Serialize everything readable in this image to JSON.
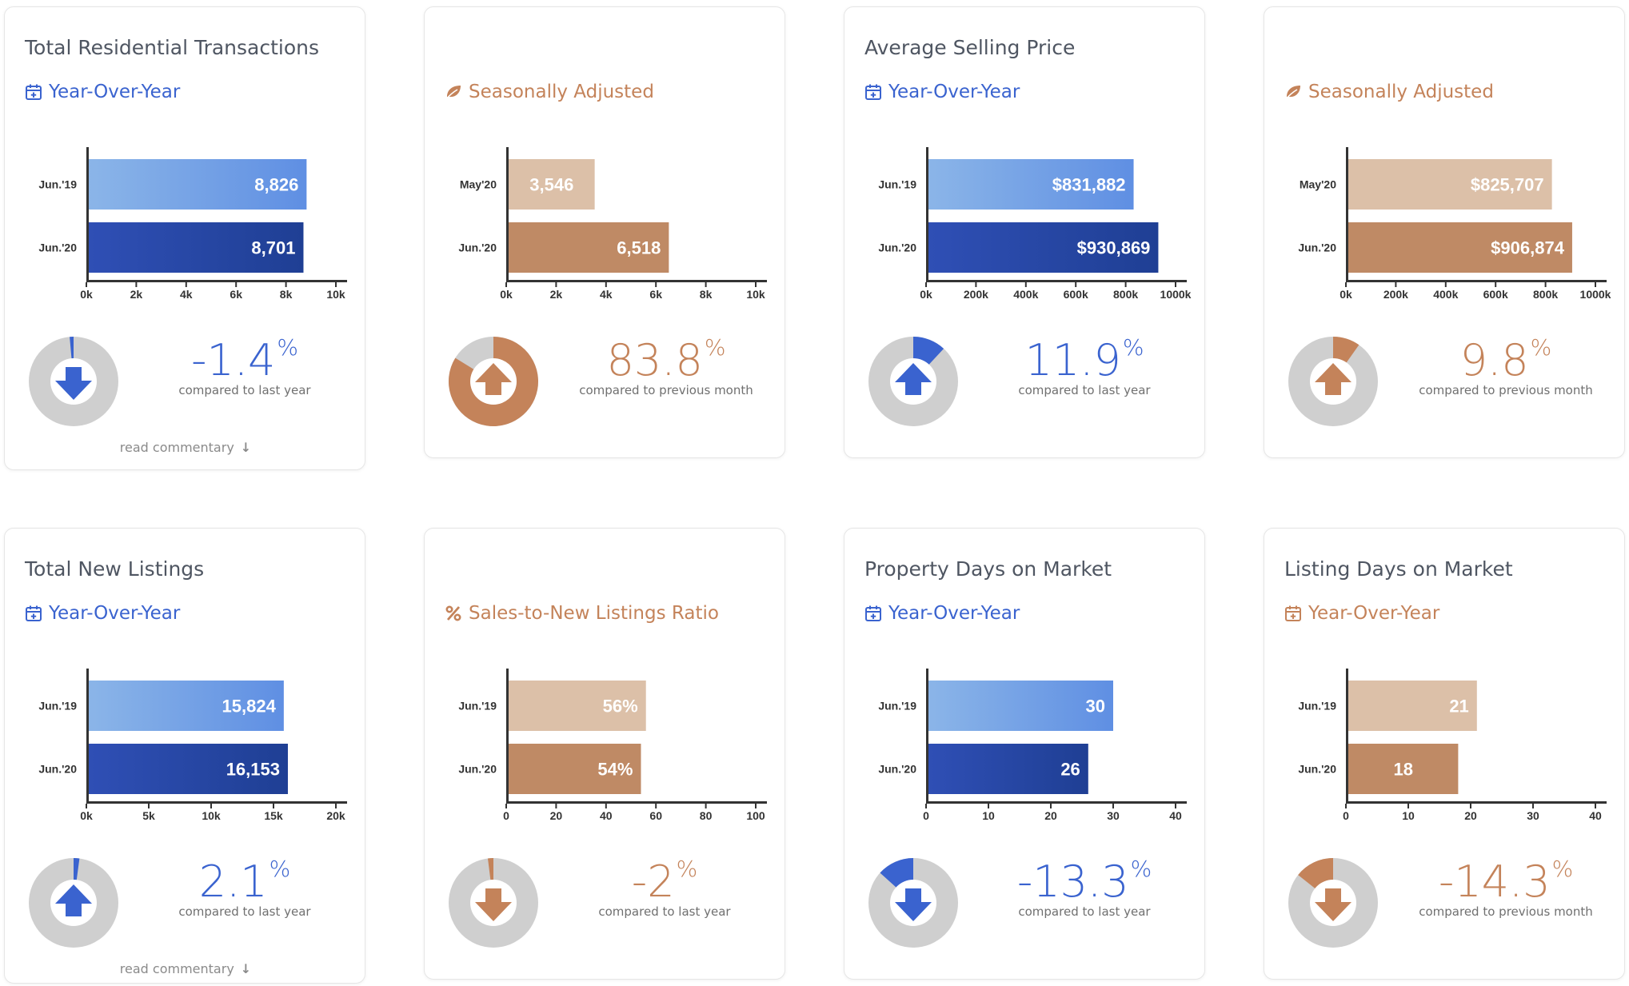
{
  "colors": {
    "blue_light": "#8bb5e8",
    "blue_mid": "#5f8fe3",
    "blue_dark": "#2f4fb5",
    "blue_deep": "#1f3f94",
    "blue_accent": "#3a63cf",
    "tan_light": "#dcc0a8",
    "tan_dark": "#bf8a65",
    "tan_accent": "#c4835a",
    "donut_gray": "#cfcfcf",
    "axis": "#333333"
  },
  "commentary": {
    "label": "read commentary"
  },
  "cards": [
    {
      "title": "Total Residential Transactions",
      "subtitle": "Year-Over-Year",
      "subtitle_icon": "calendar-plus-icon",
      "theme": "blue",
      "chart_data": {
        "type": "bar",
        "orientation": "horizontal",
        "categories": [
          "Jun.'19",
          "Jun.'20"
        ],
        "values": [
          8826,
          8701
        ],
        "value_labels": [
          "8,826",
          "8,701"
        ],
        "xlim": [
          0,
          10000
        ],
        "ticks": [
          0,
          2000,
          4000,
          6000,
          8000,
          10000
        ],
        "tick_labels": [
          "0k",
          "2k",
          "4k",
          "6k",
          "8k",
          "10k"
        ]
      },
      "change": {
        "value": "-1.4",
        "unit": "%",
        "direction": "down",
        "caption": "compared to last year",
        "donut_fraction": 0.014
      },
      "commentary": true
    },
    {
      "title": "",
      "subtitle": "Seasonally Adjusted",
      "subtitle_icon": "leaf-icon",
      "theme": "tan",
      "chart_data": {
        "type": "bar",
        "orientation": "horizontal",
        "categories": [
          "May'20",
          "Jun.'20"
        ],
        "values": [
          3546,
          6518
        ],
        "value_labels": [
          "3,546",
          "6,518"
        ],
        "xlim": [
          0,
          10000
        ],
        "ticks": [
          0,
          2000,
          4000,
          6000,
          8000,
          10000
        ],
        "tick_labels": [
          "0k",
          "2k",
          "4k",
          "6k",
          "8k",
          "10k"
        ]
      },
      "change": {
        "value": "83.8",
        "unit": "%",
        "direction": "up",
        "caption": "compared to previous month",
        "donut_fraction": 0.838
      },
      "commentary": false
    },
    {
      "title": "Average Selling Price",
      "subtitle": "Year-Over-Year",
      "subtitle_icon": "calendar-plus-icon",
      "theme": "blue",
      "chart_data": {
        "type": "bar",
        "orientation": "horizontal",
        "categories": [
          "Jun.'19",
          "Jun.'20"
        ],
        "values": [
          831882,
          930869
        ],
        "value_labels": [
          "$831,882",
          "$930,869"
        ],
        "xlim": [
          0,
          1000000
        ],
        "ticks": [
          0,
          200000,
          400000,
          600000,
          800000,
          1000000
        ],
        "tick_labels": [
          "0k",
          "200k",
          "400k",
          "600k",
          "800k",
          "1000k"
        ]
      },
      "change": {
        "value": "11.9",
        "unit": "%",
        "direction": "up",
        "caption": "compared to last year",
        "donut_fraction": 0.119
      },
      "commentary": false
    },
    {
      "title": "",
      "subtitle": "Seasonally Adjusted",
      "subtitle_icon": "leaf-icon",
      "theme": "tan",
      "chart_data": {
        "type": "bar",
        "orientation": "horizontal",
        "categories": [
          "May'20",
          "Jun.'20"
        ],
        "values": [
          825707,
          906874
        ],
        "value_labels": [
          "$825,707",
          "$906,874"
        ],
        "xlim": [
          0,
          1000000
        ],
        "ticks": [
          0,
          200000,
          400000,
          600000,
          800000,
          1000000
        ],
        "tick_labels": [
          "0k",
          "200k",
          "400k",
          "600k",
          "800k",
          "1000k"
        ]
      },
      "change": {
        "value": "9.8",
        "unit": "%",
        "direction": "up",
        "caption": "compared to previous month",
        "donut_fraction": 0.098
      },
      "commentary": false
    },
    {
      "title": "Total New Listings",
      "subtitle": "Year-Over-Year",
      "subtitle_icon": "calendar-plus-icon",
      "theme": "blue",
      "chart_data": {
        "type": "bar",
        "orientation": "horizontal",
        "categories": [
          "Jun.'19",
          "Jun.'20"
        ],
        "values": [
          15824,
          16153
        ],
        "value_labels": [
          "15,824",
          "16,153"
        ],
        "xlim": [
          0,
          20000
        ],
        "ticks": [
          0,
          5000,
          10000,
          15000,
          20000
        ],
        "tick_labels": [
          "0k",
          "5k",
          "10k",
          "15k",
          "20k"
        ]
      },
      "change": {
        "value": "2.1",
        "unit": "%",
        "direction": "up",
        "caption": "compared to last year",
        "donut_fraction": 0.021
      },
      "commentary": true
    },
    {
      "title": "",
      "subtitle": "Sales-to-New Listings Ratio",
      "subtitle_icon": "percent-icon",
      "theme": "tan",
      "chart_data": {
        "type": "bar",
        "orientation": "horizontal",
        "categories": [
          "Jun.'19",
          "Jun.'20"
        ],
        "values": [
          56,
          54
        ],
        "value_labels": [
          "56%",
          "54%"
        ],
        "xlim": [
          0,
          100
        ],
        "ticks": [
          0,
          20,
          40,
          60,
          80,
          100
        ],
        "tick_labels": [
          "0",
          "20",
          "40",
          "60",
          "80",
          "100"
        ]
      },
      "change": {
        "value": "-2",
        "unit": "%",
        "direction": "down",
        "caption": "compared to last year",
        "donut_fraction": 0.02
      },
      "commentary": false
    },
    {
      "title": "Property Days on Market",
      "subtitle": "Year-Over-Year",
      "subtitle_icon": "calendar-plus-icon",
      "theme": "blue",
      "chart_data": {
        "type": "bar",
        "orientation": "horizontal",
        "categories": [
          "Jun.'19",
          "Jun.'20"
        ],
        "values": [
          30,
          26
        ],
        "value_labels": [
          "30",
          "26"
        ],
        "xlim": [
          0,
          40
        ],
        "ticks": [
          0,
          10,
          20,
          30,
          40
        ],
        "tick_labels": [
          "0",
          "10",
          "20",
          "30",
          "40"
        ]
      },
      "change": {
        "value": "-13.3",
        "unit": "%",
        "direction": "down",
        "caption": "compared to last year",
        "donut_fraction": 0.133
      },
      "commentary": false
    },
    {
      "title": "Listing Days on Market",
      "subtitle": "Year-Over-Year",
      "subtitle_icon": "calendar-plus-icon",
      "theme": "tan",
      "chart_data": {
        "type": "bar",
        "orientation": "horizontal",
        "categories": [
          "Jun.'19",
          "Jun.'20"
        ],
        "values": [
          21,
          18
        ],
        "value_labels": [
          "21",
          "18"
        ],
        "xlim": [
          0,
          40
        ],
        "ticks": [
          0,
          10,
          20,
          30,
          40
        ],
        "tick_labels": [
          "0",
          "10",
          "20",
          "30",
          "40"
        ]
      },
      "change": {
        "value": "-14.3",
        "unit": "%",
        "direction": "down",
        "caption": "compared to previous month",
        "donut_fraction": 0.143
      },
      "commentary": false
    }
  ]
}
